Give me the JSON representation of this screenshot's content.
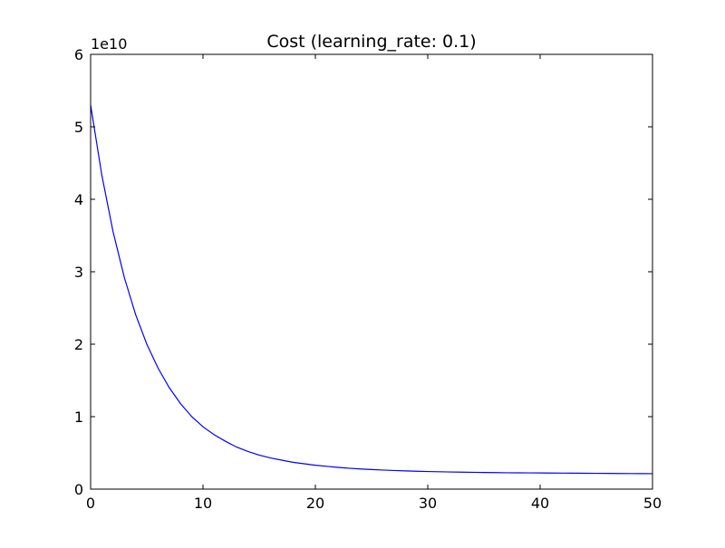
{
  "chart_data": {
    "type": "line",
    "title": "Cost (learning_rate: 0.1)",
    "xlabel": "",
    "ylabel": "",
    "xlim": [
      0,
      50
    ],
    "ylim": [
      0,
      60000000000
    ],
    "y_offset_label": "1e10",
    "x_ticks": [
      0,
      10,
      20,
      30,
      40,
      50
    ],
    "x_tick_labels": [
      "0",
      "10",
      "20",
      "30",
      "40",
      "50"
    ],
    "y_ticks": [
      0,
      10000000000,
      20000000000,
      30000000000,
      40000000000,
      50000000000,
      60000000000
    ],
    "y_tick_labels": [
      "0",
      "1",
      "2",
      "3",
      "4",
      "5",
      "6"
    ],
    "grid": false,
    "legend": "none",
    "series": [
      {
        "color": "#0000ff",
        "x": [
          0,
          1,
          2,
          3,
          4,
          5,
          6,
          7,
          8,
          9,
          10,
          11,
          12,
          13,
          14,
          15,
          16,
          17,
          18,
          19,
          20,
          21,
          22,
          23,
          24,
          25,
          26,
          27,
          28,
          29,
          30,
          31,
          32,
          33,
          34,
          35,
          36,
          37,
          38,
          39,
          40,
          41,
          42,
          43,
          44,
          45,
          46,
          47,
          48,
          49,
          50
        ],
        "y": [
          53000000000,
          43300000000,
          35500000000,
          29200000000,
          24100000000,
          20000000000,
          16700000000,
          14000000000,
          11800000000,
          10000000000,
          8600000000,
          7500000000,
          6600000000,
          5800000000,
          5200000000,
          4700000000,
          4300000000,
          4000000000,
          3700000000,
          3500000000,
          3300000000,
          3150000000,
          3000000000,
          2880000000,
          2780000000,
          2700000000,
          2630000000,
          2570000000,
          2520000000,
          2470000000,
          2430000000,
          2400000000,
          2370000000,
          2340000000,
          2320000000,
          2300000000,
          2280000000,
          2260000000,
          2250000000,
          2240000000,
          2230000000,
          2220000000,
          2210000000,
          2200000000,
          2190000000,
          2180000000,
          2170000000,
          2160000000,
          2150000000,
          2140000000,
          2130000000
        ]
      }
    ]
  }
}
